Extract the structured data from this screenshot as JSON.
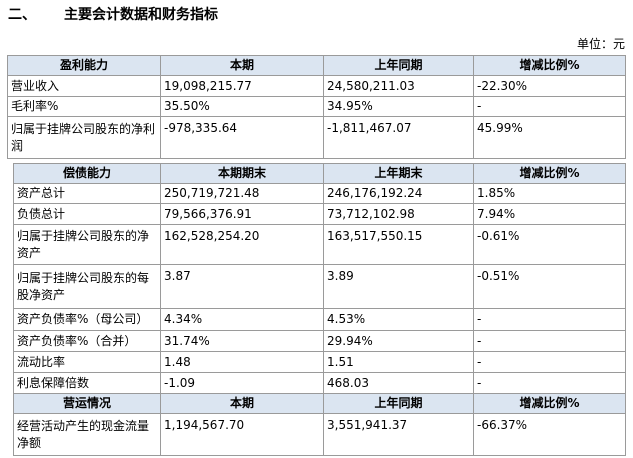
{
  "heading": {
    "number": "二、",
    "title": "主要会计数据和财务指标"
  },
  "unit": "单位：元",
  "profitability": {
    "headers": [
      "盈利能力",
      "本期",
      "上年同期",
      "增减比例%"
    ],
    "rows": [
      [
        "营业收入",
        "19,098,215.77",
        "24,580,211.03",
        "-22.30%"
      ],
      [
        "毛利率%",
        "35.50%",
        "34.95%",
        "-"
      ],
      [
        "归属于挂牌公司股东的净利润",
        "-978,335.64",
        "-1,811,467.07",
        "45.99%"
      ]
    ]
  },
  "solvency": {
    "headers": [
      "偿债能力",
      "本期期末",
      "上年期末",
      "增减比例%"
    ],
    "rows": [
      [
        "资产总计",
        "250,719,721.48",
        "246,176,192.24",
        "1.85%"
      ],
      [
        "负债总计",
        "79,566,376.91",
        "73,712,102.98",
        "7.94%"
      ],
      [
        "归属于挂牌公司股东的净资产",
        "162,528,254.20",
        "163,517,550.15",
        "-0.61%"
      ],
      [
        "归属于挂牌公司股东的每股净资产",
        "3.87",
        "3.89",
        "-0.51%"
      ],
      [
        "资产负债率%（母公司）",
        "4.34%",
        "4.53%",
        "-"
      ],
      [
        "资产负债率%（合并）",
        "31.74%",
        "29.94%",
        "-"
      ],
      [
        "流动比率",
        "1.48",
        "1.51",
        "-"
      ],
      [
        "利息保障倍数",
        "-1.09",
        "468.03",
        "-"
      ]
    ]
  },
  "operations": {
    "headers": [
      "营运情况",
      "本期",
      "上年同期",
      "增减比例%"
    ],
    "rows": [
      [
        "经营活动产生的现金流量净额",
        "1,194,567.70",
        "3,551,941.37",
        "-66.37%"
      ]
    ]
  }
}
